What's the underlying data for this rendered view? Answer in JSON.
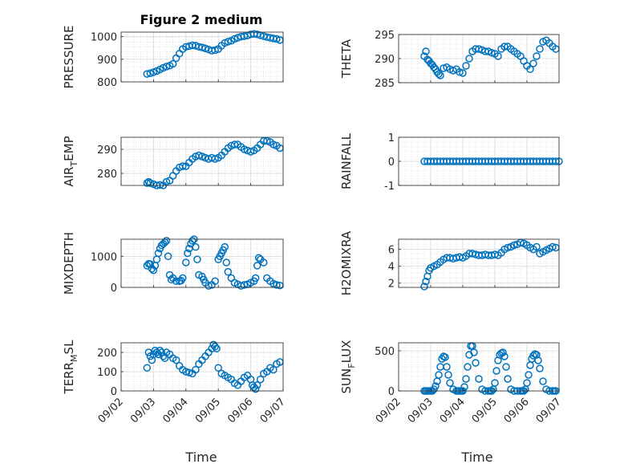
{
  "figure": {
    "title": "Figure 2 medium",
    "xlabel": "Time",
    "x_ticks": [
      "09/02",
      "09/03",
      "09/04",
      "09/05",
      "09/06",
      "09/07"
    ],
    "marker_color": "#0072BD"
  },
  "chart_data": [
    {
      "type": "scatter",
      "ylabel_main": "PRESSURE",
      "ylabel_sub": "",
      "ylabel_tail": "",
      "x_range": [
        0,
        5
      ],
      "ylim": [
        800,
        1020
      ],
      "y_ticks": [
        800,
        900,
        1000
      ],
      "grid": true,
      "series": [
        {
          "x": [
            0.8,
            0.9,
            1.0,
            1.1,
            1.2,
            1.3,
            1.4,
            1.5,
            1.6,
            1.7,
            1.8,
            1.9,
            2.0,
            2.1,
            2.2,
            2.3,
            2.4,
            2.5,
            2.6,
            2.7,
            2.8,
            2.9,
            3.0,
            3.1,
            3.2,
            3.3,
            3.4,
            3.5,
            3.6,
            3.7,
            3.8,
            3.9,
            4.0,
            4.1,
            4.2,
            4.3,
            4.4,
            4.5,
            4.6,
            4.7,
            4.8,
            4.9
          ],
          "y": [
            835,
            838,
            843,
            848,
            855,
            862,
            868,
            872,
            880,
            905,
            925,
            945,
            955,
            958,
            962,
            960,
            955,
            952,
            948,
            943,
            938,
            940,
            945,
            960,
            972,
            978,
            982,
            990,
            995,
            1000,
            1002,
            1005,
            1010,
            1012,
            1010,
            1006,
            1002,
            998,
            995,
            992,
            990,
            985
          ]
        }
      ]
    },
    {
      "type": "scatter",
      "ylabel_main": "THETA",
      "ylabel_sub": "",
      "ylabel_tail": "",
      "x_range": [
        0,
        5
      ],
      "ylim": [
        285,
        295
      ],
      "y_ticks": [
        285,
        290,
        295
      ],
      "grid": true,
      "series": [
        {
          "x": [
            0.8,
            0.85,
            0.9,
            0.95,
            1.0,
            1.05,
            1.1,
            1.15,
            1.2,
            1.25,
            1.3,
            1.4,
            1.5,
            1.6,
            1.7,
            1.8,
            1.9,
            2.0,
            2.1,
            2.2,
            2.3,
            2.4,
            2.5,
            2.6,
            2.7,
            2.8,
            2.9,
            3.0,
            3.1,
            3.2,
            3.3,
            3.4,
            3.5,
            3.6,
            3.7,
            3.8,
            3.9,
            4.0,
            4.1,
            4.2,
            4.3,
            4.4,
            4.5,
            4.6,
            4.7,
            4.8,
            4.9
          ],
          "y": [
            290.5,
            291.5,
            289.8,
            289.5,
            289.0,
            288.7,
            288.2,
            287.8,
            287.2,
            286.8,
            286.5,
            288.0,
            288.2,
            287.8,
            287.5,
            287.8,
            287.2,
            287.0,
            288.5,
            290.0,
            291.5,
            292.0,
            292.0,
            291.8,
            291.5,
            291.5,
            291.2,
            291.0,
            290.5,
            292.0,
            292.5,
            292.5,
            292.0,
            291.5,
            291.0,
            290.5,
            289.5,
            288.5,
            287.8,
            289.0,
            290.5,
            292.0,
            293.5,
            293.8,
            293.2,
            292.5,
            292.0
          ]
        }
      ]
    },
    {
      "type": "scatter",
      "ylabel_main": "AIR",
      "ylabel_sub": "T",
      "ylabel_tail": "EMP",
      "x_range": [
        0,
        5
      ],
      "ylim": [
        275,
        295
      ],
      "y_ticks": [
        280,
        290
      ],
      "grid": true,
      "series": [
        {
          "x": [
            0.8,
            0.85,
            0.9,
            1.0,
            1.1,
            1.2,
            1.3,
            1.4,
            1.5,
            1.6,
            1.7,
            1.8,
            1.9,
            2.0,
            2.1,
            2.2,
            2.3,
            2.4,
            2.5,
            2.6,
            2.7,
            2.8,
            2.9,
            3.0,
            3.1,
            3.2,
            3.3,
            3.4,
            3.5,
            3.6,
            3.7,
            3.8,
            3.9,
            4.0,
            4.1,
            4.2,
            4.3,
            4.4,
            4.5,
            4.6,
            4.7,
            4.8,
            4.9
          ],
          "y": [
            276,
            276.5,
            276,
            275.5,
            275,
            275.2,
            275,
            276.5,
            277,
            279,
            281,
            282.5,
            283,
            283,
            284.5,
            286,
            287,
            287.5,
            287,
            286.5,
            286,
            286.5,
            286,
            286.5,
            287.5,
            289,
            290.5,
            291.5,
            292,
            292,
            291,
            290,
            289.5,
            289,
            289.5,
            290.5,
            292,
            293.5,
            293.5,
            293,
            292,
            291.5,
            290.5
          ]
        }
      ]
    },
    {
      "type": "scatter",
      "ylabel_main": "RAINFALL",
      "ylabel_sub": "",
      "ylabel_tail": "",
      "x_range": [
        0,
        5
      ],
      "ylim": [
        -1,
        1
      ],
      "y_ticks": [
        -1,
        0,
        1
      ],
      "grid": true,
      "series": [
        {
          "x": [
            0.8,
            0.9,
            1.0,
            1.1,
            1.2,
            1.3,
            1.4,
            1.5,
            1.6,
            1.7,
            1.8,
            1.9,
            2.0,
            2.1,
            2.2,
            2.3,
            2.4,
            2.5,
            2.6,
            2.7,
            2.8,
            2.9,
            3.0,
            3.1,
            3.2,
            3.3,
            3.4,
            3.5,
            3.6,
            3.7,
            3.8,
            3.9,
            4.0,
            4.1,
            4.2,
            4.3,
            4.4,
            4.5,
            4.6,
            4.7,
            4.8,
            4.9,
            5.0
          ],
          "y": [
            0,
            0,
            0,
            0,
            0,
            0,
            0,
            0,
            0,
            0,
            0,
            0,
            0,
            0,
            0,
            0,
            0,
            0,
            0,
            0,
            0,
            0,
            0,
            0,
            0,
            0,
            0,
            0,
            0,
            0,
            0,
            0,
            0,
            0,
            0,
            0,
            0,
            0,
            0,
            0,
            0,
            0,
            0
          ]
        }
      ]
    },
    {
      "type": "scatter",
      "ylabel_main": "MIXDEPTH",
      "ylabel_sub": "",
      "ylabel_tail": "",
      "x_range": [
        0,
        5
      ],
      "ylim": [
        0,
        1550
      ],
      "y_ticks": [
        0,
        1000
      ],
      "grid": true,
      "series": [
        {
          "x": [
            0.8,
            0.85,
            0.9,
            0.95,
            1.0,
            1.05,
            1.1,
            1.15,
            1.2,
            1.25,
            1.3,
            1.35,
            1.4,
            1.45,
            1.5,
            1.55,
            1.6,
            1.7,
            1.8,
            1.85,
            1.9,
            2.0,
            2.05,
            2.1,
            2.15,
            2.2,
            2.25,
            2.3,
            2.35,
            2.4,
            2.5,
            2.55,
            2.6,
            2.7,
            2.8,
            2.9,
            3.0,
            3.05,
            3.1,
            3.15,
            3.2,
            3.25,
            3.3,
            3.4,
            3.5,
            3.6,
            3.7,
            3.8,
            3.9,
            4.0,
            4.1,
            4.15,
            4.2,
            4.25,
            4.3,
            4.4,
            4.5,
            4.6,
            4.7,
            4.8,
            4.9
          ],
          "y": [
            700,
            760,
            750,
            600,
            550,
            700,
            900,
            1100,
            1250,
            1350,
            1400,
            1450,
            1500,
            1000,
            400,
            250,
            300,
            200,
            200,
            220,
            300,
            800,
            1100,
            1250,
            1400,
            1500,
            1550,
            1300,
            900,
            400,
            350,
            250,
            150,
            50,
            80,
            200,
            900,
            1000,
            1100,
            1200,
            1300,
            800,
            500,
            300,
            150,
            100,
            50,
            80,
            100,
            150,
            200,
            300,
            700,
            950,
            900,
            800,
            300,
            200,
            120,
            80,
            60
          ]
        }
      ]
    },
    {
      "type": "scatter",
      "ylabel_main": "H2OMIXRA",
      "ylabel_sub": "",
      "ylabel_tail": "",
      "x_range": [
        0,
        5
      ],
      "ylim": [
        1.5,
        7.2
      ],
      "y_ticks": [
        2,
        4,
        6
      ],
      "grid": true,
      "series": [
        {
          "x": [
            0.8,
            0.85,
            0.9,
            0.95,
            1.0,
            1.1,
            1.2,
            1.3,
            1.4,
            1.5,
            1.6,
            1.7,
            1.8,
            1.9,
            2.0,
            2.1,
            2.2,
            2.3,
            2.4,
            2.5,
            2.6,
            2.7,
            2.8,
            2.9,
            3.0,
            3.1,
            3.2,
            3.3,
            3.4,
            3.5,
            3.6,
            3.7,
            3.8,
            3.9,
            4.0,
            4.1,
            4.2,
            4.3,
            4.4,
            4.5,
            4.6,
            4.7,
            4.8,
            4.9
          ],
          "y": [
            1.6,
            2.2,
            2.8,
            3.5,
            3.8,
            4.0,
            4.2,
            4.5,
            4.8,
            5.0,
            5.0,
            4.9,
            5.0,
            5.1,
            5.0,
            5.2,
            5.5,
            5.5,
            5.4,
            5.3,
            5.3,
            5.4,
            5.3,
            5.3,
            5.4,
            5.3,
            5.6,
            6.0,
            6.2,
            6.3,
            6.5,
            6.6,
            6.8,
            6.7,
            6.5,
            6.2,
            6.0,
            6.3,
            5.5,
            5.7,
            5.9,
            6.1,
            6.3,
            6.2
          ]
        }
      ]
    },
    {
      "type": "scatter",
      "ylabel_main": "TERR",
      "ylabel_sub": "M",
      "ylabel_tail": "SL",
      "x_range": [
        0,
        5
      ],
      "ylim": [
        0,
        250
      ],
      "y_ticks": [
        0,
        100,
        200
      ],
      "grid": true,
      "series": [
        {
          "x": [
            0.8,
            0.85,
            0.9,
            0.95,
            1.0,
            1.05,
            1.1,
            1.15,
            1.2,
            1.25,
            1.3,
            1.35,
            1.4,
            1.5,
            1.6,
            1.7,
            1.8,
            1.9,
            2.0,
            2.1,
            2.2,
            2.3,
            2.4,
            2.5,
            2.6,
            2.7,
            2.8,
            2.85,
            2.9,
            2.95,
            3.0,
            3.1,
            3.2,
            3.3,
            3.4,
            3.5,
            3.6,
            3.7,
            3.8,
            3.9,
            4.0,
            4.05,
            4.1,
            4.15,
            4.2,
            4.3,
            4.4,
            4.5,
            4.6,
            4.7,
            4.8,
            4.9
          ],
          "y": [
            120,
            200,
            180,
            160,
            190,
            210,
            200,
            190,
            210,
            200,
            180,
            170,
            200,
            190,
            170,
            160,
            130,
            110,
            100,
            95,
            90,
            110,
            140,
            160,
            180,
            200,
            220,
            240,
            230,
            220,
            120,
            90,
            80,
            70,
            60,
            40,
            30,
            50,
            70,
            80,
            60,
            30,
            20,
            10,
            30,
            60,
            90,
            100,
            120,
            110,
            140,
            150
          ]
        }
      ]
    },
    {
      "type": "scatter",
      "ylabel_main": "SUN",
      "ylabel_sub": "F",
      "ylabel_tail": "LUX",
      "x_range": [
        0,
        5
      ],
      "ylim": [
        0,
        600
      ],
      "y_ticks": [
        0,
        500
      ],
      "grid": true,
      "series": [
        {
          "x": [
            0.8,
            0.85,
            0.9,
            0.95,
            1.0,
            1.05,
            1.1,
            1.15,
            1.2,
            1.25,
            1.3,
            1.35,
            1.4,
            1.45,
            1.5,
            1.55,
            1.6,
            1.7,
            1.8,
            1.85,
            1.9,
            1.95,
            2.0,
            2.05,
            2.1,
            2.15,
            2.2,
            2.25,
            2.3,
            2.35,
            2.4,
            2.5,
            2.6,
            2.7,
            2.8,
            2.85,
            2.9,
            2.95,
            3.0,
            3.05,
            3.1,
            3.15,
            3.2,
            3.25,
            3.3,
            3.35,
            3.4,
            3.5,
            3.6,
            3.7,
            3.8,
            3.85,
            3.9,
            3.95,
            4.0,
            4.05,
            4.1,
            4.15,
            4.2,
            4.25,
            4.3,
            4.35,
            4.4,
            4.5,
            4.6,
            4.7,
            4.8,
            4.85,
            4.9
          ],
          "y": [
            0,
            0,
            0,
            0,
            0,
            0,
            20,
            60,
            120,
            200,
            300,
            400,
            430,
            420,
            300,
            200,
            100,
            20,
            0,
            0,
            0,
            0,
            0,
            50,
            150,
            300,
            450,
            560,
            560,
            480,
            350,
            150,
            20,
            0,
            0,
            0,
            0,
            20,
            100,
            250,
            380,
            450,
            470,
            480,
            430,
            300,
            150,
            20,
            0,
            0,
            0,
            0,
            0,
            20,
            100,
            200,
            320,
            400,
            440,
            460,
            450,
            380,
            280,
            120,
            20,
            0,
            0,
            0,
            0
          ]
        }
      ]
    }
  ]
}
